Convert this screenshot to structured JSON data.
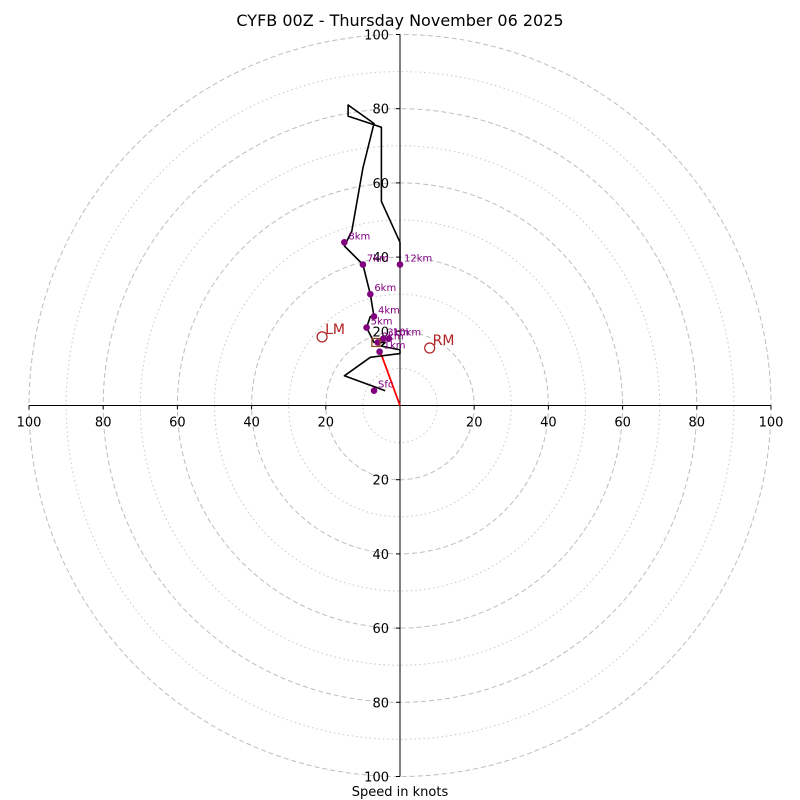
{
  "chart_data": {
    "type": "hodograph",
    "title": "CYFB 00Z - Thursday November 06 2025",
    "xlabel": "Speed in knots",
    "range": 100,
    "ring_values": [
      20,
      40,
      60,
      80,
      100
    ],
    "dotted_ring_values": [
      10,
      30,
      50,
      70,
      90
    ],
    "tick_labels": [
      "20",
      "40",
      "60",
      "80",
      "100"
    ],
    "trace": [
      {
        "u": -4,
        "v": 4
      },
      {
        "u": -15,
        "v": 8
      },
      {
        "u": -8,
        "v": 13
      },
      {
        "u": 0,
        "v": 14
      },
      {
        "u": 0,
        "v": 15
      },
      {
        "u": -5,
        "v": 16
      },
      {
        "u": -4,
        "v": 17
      },
      {
        "u": -7,
        "v": 17
      },
      {
        "u": -9,
        "v": 21
      },
      {
        "u": -8,
        "v": 24
      },
      {
        "u": -7,
        "v": 24
      },
      {
        "u": -8,
        "v": 30
      },
      {
        "u": -10,
        "v": 38
      },
      {
        "u": -15,
        "v": 43
      },
      {
        "u": -13,
        "v": 47
      },
      {
        "u": -10,
        "v": 64
      },
      {
        "u": -7,
        "v": 76
      },
      {
        "u": -14,
        "v": 81
      },
      {
        "u": -14,
        "v": 78
      },
      {
        "u": -8,
        "v": 76
      },
      {
        "u": -5,
        "v": 75
      },
      {
        "u": -5,
        "v": 55
      },
      {
        "u": 0,
        "v": 44
      },
      {
        "u": 0,
        "v": 38
      }
    ],
    "height_markers": [
      {
        "label": "Sfc",
        "u": -7,
        "v": 4
      },
      {
        "label": "1km",
        "u": -5.5,
        "v": 14.5
      },
      {
        "label": "2km",
        "u": -6,
        "v": 17
      },
      {
        "label": "3km",
        "u": -4.5,
        "v": 18
      },
      {
        "label": "10km",
        "u": -3,
        "v": 18
      },
      {
        "label": "4km",
        "u": -7,
        "v": 24
      },
      {
        "label": "5km",
        "u": -9,
        "v": 21
      },
      {
        "label": "6km",
        "u": -8,
        "v": 30
      },
      {
        "label": "7km",
        "u": -10,
        "v": 38
      },
      {
        "label": "8km",
        "u": -15,
        "v": 44
      },
      {
        "label": "12km",
        "u": 0,
        "v": 38
      }
    ],
    "shear_vector": {
      "from": {
        "u": 0,
        "v": 0
      },
      "to": {
        "u": -5.5,
        "v": 15
      },
      "color": "#ff0000"
    },
    "bunkers_motion": {
      "LM": {
        "label": "LM",
        "u": -21,
        "v": 18.5
      },
      "RM": {
        "label": "RM",
        "u": 8,
        "v": 15.5
      }
    },
    "mean_wind": {
      "label": "MW",
      "u": -6.5,
      "v": 17
    }
  }
}
